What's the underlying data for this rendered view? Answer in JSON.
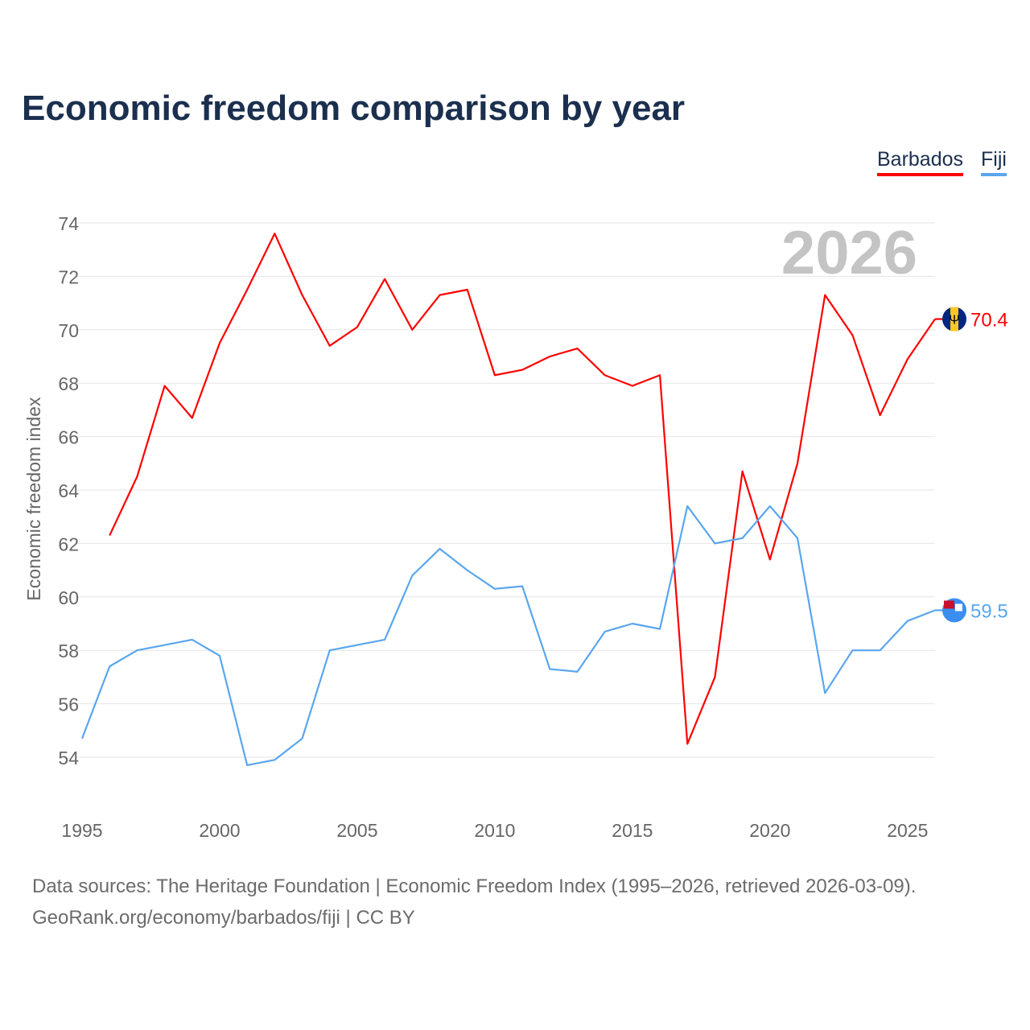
{
  "chart_data": {
    "type": "line",
    "title": "Economic freedom comparison by year",
    "ylabel": "Economic freedom index",
    "xlabel": "",
    "ylim": [
      54,
      74
    ],
    "xlim": [
      1995,
      2026
    ],
    "yticks": [
      "54",
      "56",
      "58",
      "60",
      "62",
      "64",
      "66",
      "68",
      "70",
      "72",
      "74"
    ],
    "xticks": [
      "1995",
      "2000",
      "2005",
      "2010",
      "2015",
      "2020",
      "2025"
    ],
    "year_watermark": "2026",
    "grid": true,
    "legend_position": "top-right",
    "series": [
      {
        "name": "Barbados",
        "color": "#ff0000",
        "end_label": "70.4",
        "x": [
          1996,
          1997,
          1998,
          1999,
          2000,
          2001,
          2002,
          2003,
          2004,
          2005,
          2006,
          2007,
          2008,
          2009,
          2010,
          2011,
          2012,
          2013,
          2014,
          2015,
          2016,
          2017,
          2018,
          2019,
          2020,
          2021,
          2022,
          2023,
          2024,
          2025,
          2026
        ],
        "values": [
          62.3,
          64.5,
          67.9,
          66.7,
          69.5,
          71.5,
          73.6,
          71.3,
          69.4,
          70.1,
          71.9,
          70.0,
          71.3,
          71.5,
          68.3,
          68.5,
          69.0,
          69.3,
          68.3,
          67.9,
          68.3,
          54.5,
          57.0,
          64.7,
          61.4,
          65.0,
          71.3,
          69.8,
          66.8,
          68.9,
          70.4
        ]
      },
      {
        "name": "Fiji",
        "color": "#5aa6ee",
        "end_label": "59.5",
        "x": [
          1995,
          1996,
          1997,
          1998,
          1999,
          2000,
          2001,
          2002,
          2003,
          2004,
          2005,
          2006,
          2007,
          2008,
          2009,
          2010,
          2011,
          2012,
          2013,
          2014,
          2015,
          2016,
          2017,
          2018,
          2019,
          2020,
          2021,
          2022,
          2023,
          2024,
          2025,
          2026
        ],
        "values": [
          54.7,
          57.4,
          58.0,
          58.2,
          58.4,
          57.8,
          53.7,
          53.9,
          54.7,
          58.0,
          58.2,
          58.4,
          60.8,
          61.8,
          61.0,
          60.3,
          60.4,
          57.3,
          57.2,
          58.7,
          59.0,
          58.8,
          63.4,
          62.0,
          62.2,
          63.4,
          62.2,
          56.4,
          58.0,
          58.0,
          59.1,
          59.5
        ]
      }
    ]
  },
  "sources": {
    "line1": "Data sources: The Heritage Foundation | Economic Freedom Index (1995–2026, retrieved 2026-03-09).",
    "line2": "GeoRank.org/economy/barbados/fiji | CC BY"
  }
}
